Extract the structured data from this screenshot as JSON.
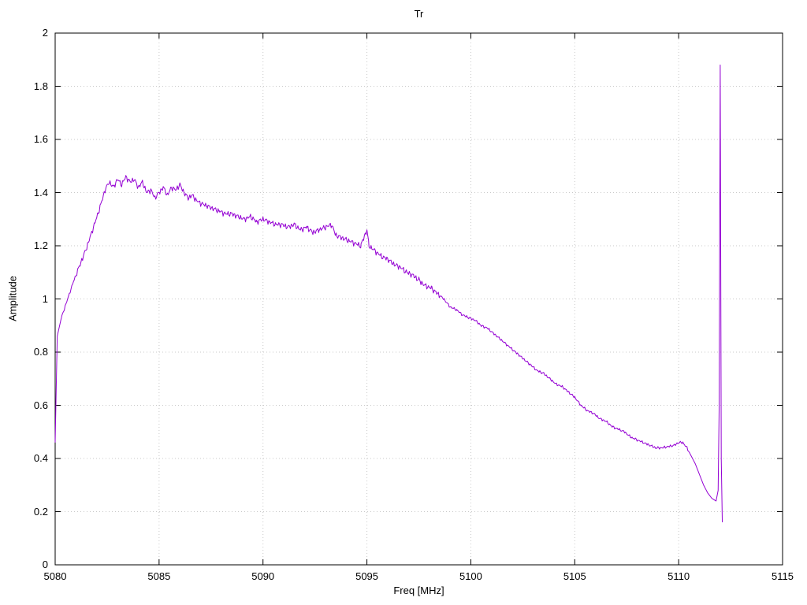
{
  "chart_data": {
    "type": "line",
    "title": "Tr",
    "xlabel": "Freq [MHz]",
    "ylabel": "Amplitude",
    "xlim": [
      5080,
      5115
    ],
    "ylim": [
      0,
      2
    ],
    "xticks": [
      5080,
      5085,
      5090,
      5095,
      5100,
      5105,
      5110,
      5115
    ],
    "xtick_labels": [
      "5080",
      "5085",
      "5090",
      "5095",
      "5100",
      "5105",
      "5110",
      "5115"
    ],
    "yticks": [
      0,
      0.2,
      0.4,
      0.6,
      0.8,
      1,
      1.2,
      1.4,
      1.6,
      1.8,
      2
    ],
    "ytick_labels": [
      "0",
      "0.2",
      "0.4",
      "0.6",
      "0.8",
      "1",
      "1.2",
      "1.4",
      "1.6",
      "1.8",
      "2"
    ],
    "grid": true,
    "legend": "none",
    "line_color": "#9400d3",
    "grid_color": "#c8c8c8",
    "border_color": "#000000",
    "noise": {
      "amplitude_main": 0.013,
      "amplitude_tail": 0.006,
      "main_range": [
        5081,
        5098.5
      ],
      "quiet_above": 5110.5
    },
    "series": [
      {
        "name": "Tr",
        "points": [
          [
            5080.0,
            0.46
          ],
          [
            5080.1,
            0.86
          ],
          [
            5080.3,
            0.93
          ],
          [
            5080.6,
            1.0
          ],
          [
            5080.9,
            1.07
          ],
          [
            5081.2,
            1.13
          ],
          [
            5081.5,
            1.19
          ],
          [
            5081.8,
            1.26
          ],
          [
            5082.1,
            1.33
          ],
          [
            5082.4,
            1.41
          ],
          [
            5082.6,
            1.44
          ],
          [
            5082.8,
            1.42
          ],
          [
            5083.0,
            1.45
          ],
          [
            5083.2,
            1.43
          ],
          [
            5083.4,
            1.46
          ],
          [
            5083.6,
            1.44
          ],
          [
            5083.8,
            1.45
          ],
          [
            5084.0,
            1.42
          ],
          [
            5084.2,
            1.44
          ],
          [
            5084.4,
            1.4
          ],
          [
            5084.6,
            1.41
          ],
          [
            5084.8,
            1.38
          ],
          [
            5085.0,
            1.4
          ],
          [
            5085.2,
            1.42
          ],
          [
            5085.4,
            1.39
          ],
          [
            5085.6,
            1.42
          ],
          [
            5085.8,
            1.41
          ],
          [
            5086.0,
            1.43
          ],
          [
            5086.2,
            1.4
          ],
          [
            5086.4,
            1.38
          ],
          [
            5086.6,
            1.39
          ],
          [
            5086.8,
            1.37
          ],
          [
            5087.0,
            1.36
          ],
          [
            5087.3,
            1.35
          ],
          [
            5087.6,
            1.34
          ],
          [
            5087.9,
            1.33
          ],
          [
            5088.2,
            1.32
          ],
          [
            5088.5,
            1.32
          ],
          [
            5088.8,
            1.31
          ],
          [
            5089.1,
            1.3
          ],
          [
            5089.4,
            1.31
          ],
          [
            5089.7,
            1.29
          ],
          [
            5090.0,
            1.3
          ],
          [
            5090.3,
            1.29
          ],
          [
            5090.6,
            1.28
          ],
          [
            5090.9,
            1.28
          ],
          [
            5091.2,
            1.27
          ],
          [
            5091.5,
            1.28
          ],
          [
            5091.8,
            1.26
          ],
          [
            5092.1,
            1.27
          ],
          [
            5092.4,
            1.25
          ],
          [
            5092.7,
            1.26
          ],
          [
            5093.0,
            1.27
          ],
          [
            5093.3,
            1.28
          ],
          [
            5093.5,
            1.24
          ],
          [
            5093.8,
            1.23
          ],
          [
            5094.1,
            1.22
          ],
          [
            5094.4,
            1.21
          ],
          [
            5094.7,
            1.2
          ],
          [
            5095.0,
            1.26
          ],
          [
            5095.1,
            1.2
          ],
          [
            5095.4,
            1.18
          ],
          [
            5095.7,
            1.16
          ],
          [
            5096.0,
            1.15
          ],
          [
            5096.3,
            1.13
          ],
          [
            5096.6,
            1.12
          ],
          [
            5096.9,
            1.1
          ],
          [
            5097.2,
            1.09
          ],
          [
            5097.5,
            1.07
          ],
          [
            5097.8,
            1.05
          ],
          [
            5098.1,
            1.04
          ],
          [
            5098.4,
            1.02
          ],
          [
            5098.7,
            1.0
          ],
          [
            5099.0,
            0.97
          ],
          [
            5099.3,
            0.96
          ],
          [
            5099.6,
            0.94
          ],
          [
            5099.9,
            0.93
          ],
          [
            5100.2,
            0.92
          ],
          [
            5100.5,
            0.9
          ],
          [
            5100.8,
            0.89
          ],
          [
            5101.1,
            0.87
          ],
          [
            5101.4,
            0.85
          ],
          [
            5101.7,
            0.83
          ],
          [
            5102.0,
            0.81
          ],
          [
            5102.3,
            0.79
          ],
          [
            5102.6,
            0.77
          ],
          [
            5102.9,
            0.75
          ],
          [
            5103.2,
            0.73
          ],
          [
            5103.5,
            0.72
          ],
          [
            5103.8,
            0.7
          ],
          [
            5104.1,
            0.68
          ],
          [
            5104.4,
            0.67
          ],
          [
            5104.7,
            0.65
          ],
          [
            5105.0,
            0.63
          ],
          [
            5105.3,
            0.6
          ],
          [
            5105.6,
            0.58
          ],
          [
            5105.9,
            0.57
          ],
          [
            5106.2,
            0.55
          ],
          [
            5106.5,
            0.54
          ],
          [
            5106.8,
            0.52
          ],
          [
            5107.1,
            0.51
          ],
          [
            5107.4,
            0.5
          ],
          [
            5107.7,
            0.48
          ],
          [
            5108.0,
            0.47
          ],
          [
            5108.3,
            0.46
          ],
          [
            5108.6,
            0.45
          ],
          [
            5108.9,
            0.44
          ],
          [
            5109.2,
            0.44
          ],
          [
            5109.5,
            0.445
          ],
          [
            5109.8,
            0.45
          ],
          [
            5110.0,
            0.46
          ],
          [
            5110.2,
            0.46
          ],
          [
            5110.4,
            0.44
          ],
          [
            5110.6,
            0.41
          ],
          [
            5110.8,
            0.38
          ],
          [
            5111.0,
            0.34
          ],
          [
            5111.2,
            0.3
          ],
          [
            5111.4,
            0.27
          ],
          [
            5111.6,
            0.25
          ],
          [
            5111.8,
            0.24
          ],
          [
            5111.9,
            0.28
          ],
          [
            5111.95,
            0.6
          ],
          [
            5112.0,
            1.88
          ],
          [
            5112.05,
            0.4
          ],
          [
            5112.1,
            0.16
          ]
        ]
      }
    ]
  }
}
